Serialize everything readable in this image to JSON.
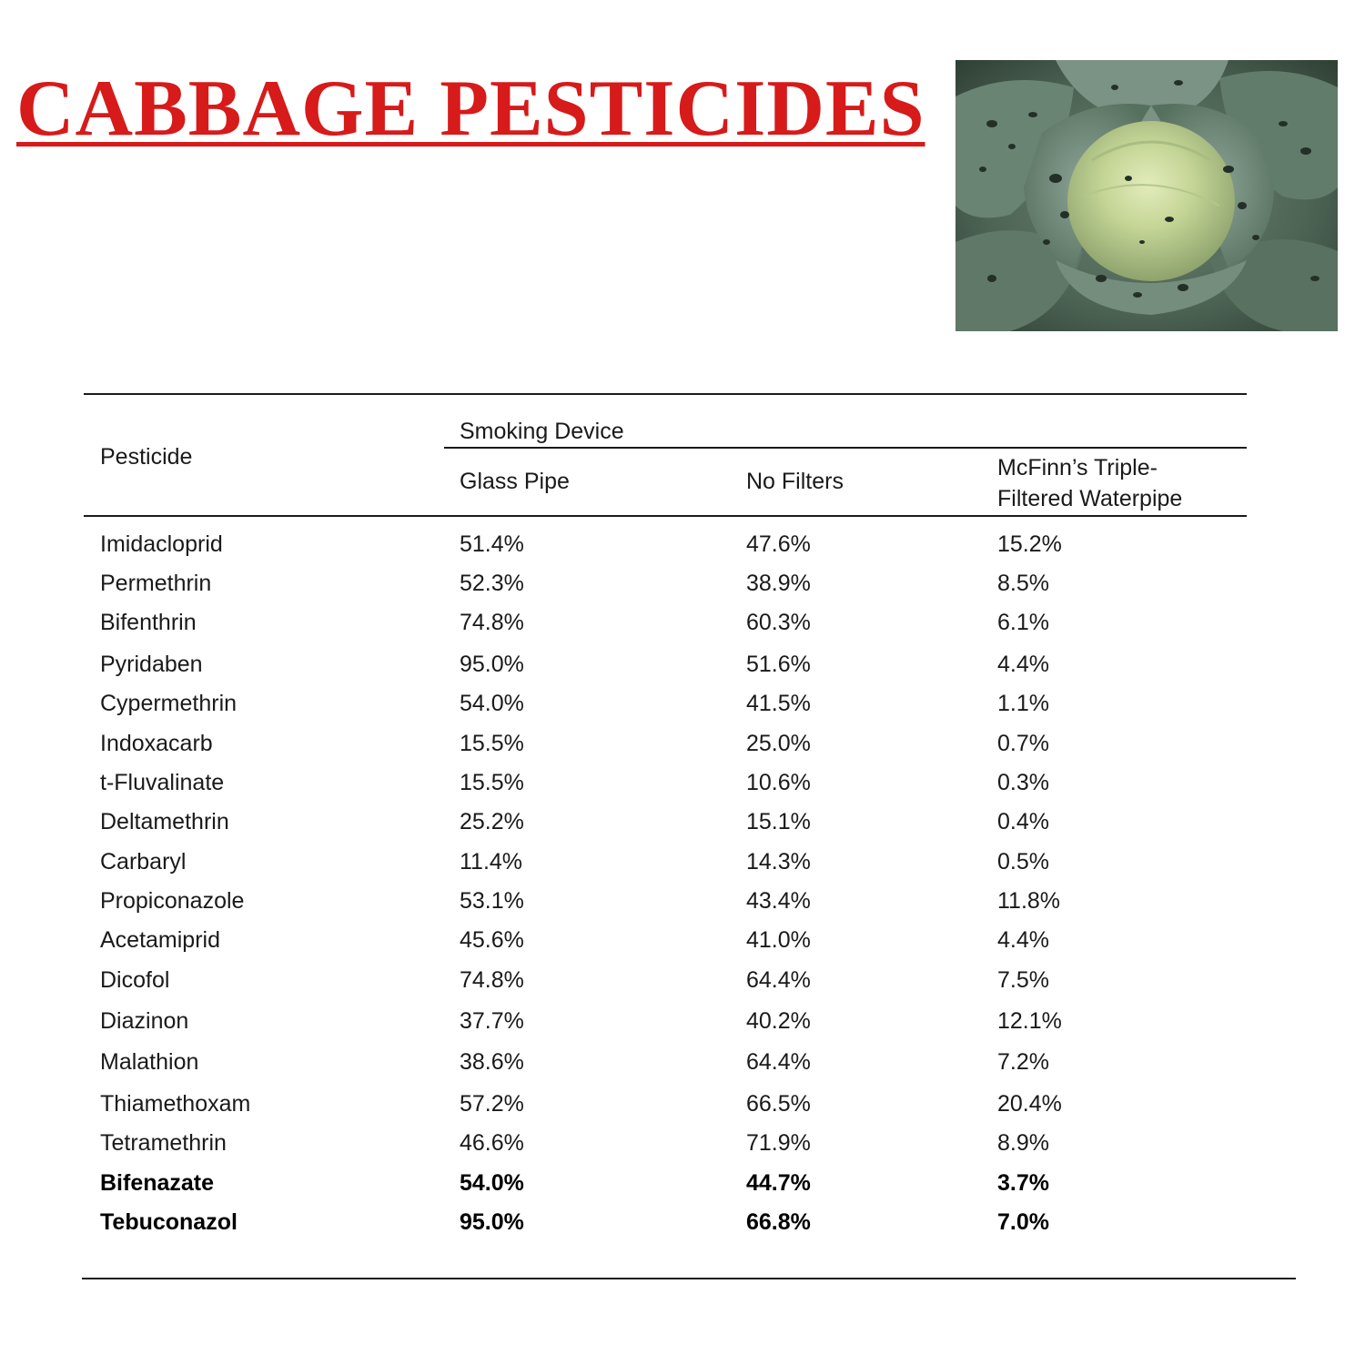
{
  "title": "CABBAGE PESTICIDES",
  "photo": {
    "icon": "cabbage-photo"
  },
  "table": {
    "header": {
      "pesticide": "Pesticide",
      "group": "Smoking Device",
      "glass_pipe": "Glass Pipe",
      "no_filters": "No Filters",
      "mcfinn_line1": "McFinn’s Triple-",
      "mcfinn_line2": "Filtered Waterpipe"
    },
    "rows": [
      {
        "name": "Imidacloprid",
        "glass": "51.4%",
        "nofilter": "47.6%",
        "mcfinn": "15.2%",
        "bold": false
      },
      {
        "name": "Permethrin",
        "glass": "52.3%",
        "nofilter": "38.9%",
        "mcfinn": "8.5%",
        "bold": false
      },
      {
        "name": "Bifenthrin",
        "glass": "74.8%",
        "nofilter": "60.3%",
        "mcfinn": "6.1%",
        "bold": false
      },
      {
        "name": "Pyridaben",
        "glass": "95.0%",
        "nofilter": "51.6%",
        "mcfinn": "4.4%",
        "bold": false
      },
      {
        "name": "Cypermethrin",
        "glass": "54.0%",
        "nofilter": "41.5%",
        "mcfinn": "1.1%",
        "bold": false
      },
      {
        "name": "Indoxacarb",
        "glass": "15.5%",
        "nofilter": "25.0%",
        "mcfinn": "0.7%",
        "bold": false
      },
      {
        "name": "t-Fluvalinate",
        "glass": "15.5%",
        "nofilter": "10.6%",
        "mcfinn": "0.3%",
        "bold": false
      },
      {
        "name": "Deltamethrin",
        "glass": "25.2%",
        "nofilter": "15.1%",
        "mcfinn": "0.4%",
        "bold": false
      },
      {
        "name": "Carbaryl",
        "glass": "11.4%",
        "nofilter": "14.3%",
        "mcfinn": "0.5%",
        "bold": false
      },
      {
        "name": "Propiconazole",
        "glass": "53.1%",
        "nofilter": "43.4%",
        "mcfinn": "11.8%",
        "bold": false
      },
      {
        "name": "Acetamiprid",
        "glass": "45.6%",
        "nofilter": "41.0%",
        "mcfinn": "4.4%",
        "bold": false
      },
      {
        "name": "Dicofol",
        "glass": "74.8%",
        "nofilter": "64.4%",
        "mcfinn": "7.5%",
        "bold": false
      },
      {
        "name": "Diazinon",
        "glass": "37.7%",
        "nofilter": "40.2%",
        "mcfinn": "12.1%",
        "bold": false
      },
      {
        "name": "Malathion",
        "glass": "38.6%",
        "nofilter": "64.4%",
        "mcfinn": "7.2%",
        "bold": false
      },
      {
        "name": "Thiamethoxam",
        "glass": "57.2%",
        "nofilter": "66.5%",
        "mcfinn": "20.4%",
        "bold": false
      },
      {
        "name": "Tetramethrin",
        "glass": "46.6%",
        "nofilter": "71.9%",
        "mcfinn": "8.9%",
        "bold": false
      },
      {
        "name": "Bifenazate",
        "glass": "54.0%",
        "nofilter": "44.7%",
        "mcfinn": "3.7%",
        "bold": true
      },
      {
        "name": "Tebuconazol",
        "glass": "95.0%",
        "nofilter": "66.8%",
        "mcfinn": "7.0%",
        "bold": true
      }
    ]
  }
}
